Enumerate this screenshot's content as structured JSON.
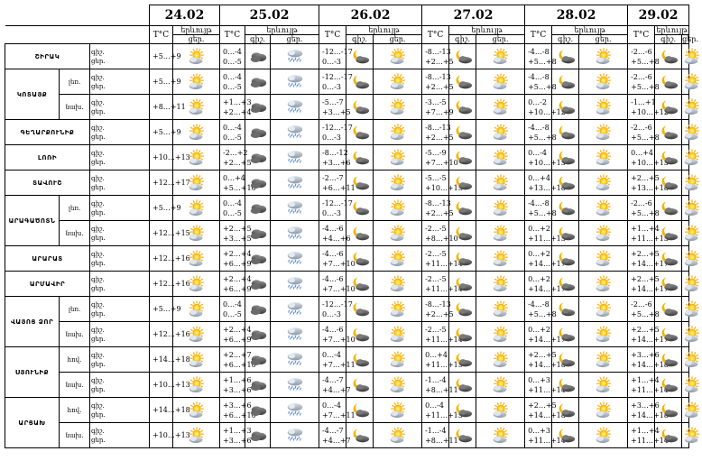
{
  "header": {
    "dates": [
      "24.02",
      "25.02",
      "26.02",
      "27.02",
      "28.02",
      "29.02"
    ],
    "temp_label": "T°C",
    "weather_label": "երևույթ",
    "night_short": "գիշ.",
    "day_short": "ցեր."
  },
  "rows": [
    {
      "region": "ՇԻՐԱԿ",
      "sub": "",
      "temps": [
        "+5…+9",
        "0…-4\n0…-5",
        "-12…-17\n0…-3",
        "-8…-13\n+2…+5",
        "-4…-8\n+5…+8",
        "-2…-6\n+5…+8"
      ],
      "icons": [
        "sun",
        "cloud",
        "rain",
        "moon",
        "sun",
        "moon",
        "sun",
        "moon",
        "sun",
        "moon",
        "sun"
      ]
    },
    {
      "region": "ԿՈՏԱՅՔ",
      "sub": "լեռ.",
      "temps": [
        "+5…+9",
        "0…-4\n0…-5",
        "-12…-17\n0…-3",
        "-8…-13\n+2…+5",
        "-4…-8\n+5…+8",
        "-2…-6\n+5…+8"
      ],
      "icons": [
        "sun",
        "cloud",
        "rain",
        "moon",
        "sun",
        "moon",
        "sun",
        "moon",
        "sun",
        "moon",
        "sun"
      ]
    },
    {
      "region": "",
      "sub": "նախ.",
      "temps": [
        "+8…+11",
        "+1…+3\n+2…+4",
        "-5…-7\n+3…+5",
        "-3…-5\n+7…+9",
        "0…-2\n+10…+12",
        "-1…+1\n+10…+12"
      ],
      "icons": [
        "sun",
        "cloud",
        "rain",
        "moon",
        "sun",
        "moon",
        "sun",
        "moon",
        "sun",
        "moon",
        "sun"
      ]
    },
    {
      "region": "ԳԵՂԱՐՔՈՒՆԻՔ",
      "sub": "",
      "temps": [
        "+5…+9",
        "0…-4\n0…-5",
        "-12…-17\n0…-3",
        "-8…-13\n+2…+5",
        "-4…-8\n+5…+8",
        "-2…-6\n+5…+8"
      ],
      "icons": [
        "sun",
        "cloud",
        "rain",
        "moon",
        "sun",
        "moon",
        "sun",
        "moon",
        "sun",
        "moon",
        "sun"
      ]
    },
    {
      "region": "ԼՈՌԻ",
      "sub": "",
      "temps": [
        "+10…+13",
        "-2…+2\n+2…+5",
        "-8…-12\n+3…+6",
        "-5…-9\n+7…+10",
        "0…-4\n+10…+13",
        "0…+4\n+10…+13"
      ],
      "icons": [
        "sun",
        "cloud",
        "rain",
        "moon",
        "sun",
        "moon",
        "sun",
        "moon",
        "sun",
        "moon",
        "sun"
      ]
    },
    {
      "region": "ՏԱՎՈՒՇ",
      "sub": "",
      "temps": [
        "+12…+17",
        "0…+4\n+5…+10",
        "-2…-7\n+6…+11",
        "-5…-5\n+10…+15",
        "0…+4\n+13…+18",
        "+2…+5\n+13…+18"
      ],
      "icons": [
        "sun",
        "cloud",
        "rain",
        "moon",
        "sun",
        "moon",
        "sun",
        "moon",
        "sun",
        "moon",
        "sun"
      ]
    },
    {
      "region": "ԱՐԱԳԱԾՈՏՆ",
      "sub": "լեռ.",
      "temps": [
        "+5…+9",
        "0…-4\n0…-5",
        "-12…-17\n0…-3",
        "-8…-13\n+2…+5",
        "-4…-8\n+5…+8",
        "-2…-6\n+5…+8"
      ],
      "icons": [
        "sun",
        "cloud",
        "rain",
        "moon",
        "sun",
        "moon",
        "sun",
        "moon",
        "sun",
        "moon",
        "sun"
      ]
    },
    {
      "region": "",
      "sub": "նախ.",
      "temps": [
        "+12…+15",
        "+2…+5\n+3…+5",
        "-4…-6\n+4…+6",
        "-2…-5\n+8…+10",
        "0…+2\n+11…+13",
        "+1…+4\n+11…+13"
      ],
      "icons": [
        "sun",
        "cloud",
        "rain",
        "moon",
        "sun",
        "moon",
        "sun",
        "moon",
        "sun",
        "moon",
        "sun"
      ]
    },
    {
      "region": "ԱՐԱՐԱՏ",
      "sub": "",
      "temps": [
        "+12…+16",
        "+2…+4\n+6…+9",
        "-4…-6\n+7…+10",
        "-2…-5\n+11…+14",
        "0…+2\n+14…+17",
        "+2…+5\n+14…+17"
      ],
      "icons": [
        "sun",
        "cloud",
        "rain",
        "moon",
        "sun",
        "moon",
        "sun",
        "moon",
        "sun",
        "moon",
        "sun"
      ]
    },
    {
      "region": "ԱՐՄԱՎԻՐ",
      "sub": "",
      "temps": [
        "+12…+16",
        "+2…+4\n+6…+9",
        "-4…-6\n+7…+10",
        "-2…-5\n+11…+14",
        "0…+2\n+14…+17",
        "+2…+5\n+14…+17"
      ],
      "icons": [
        "sun",
        "cloud",
        "rain",
        "moon",
        "sun",
        "moon",
        "sun",
        "moon",
        "sun",
        "moon",
        "sun"
      ]
    },
    {
      "region": "ՎԱՅՈՑ ՁՈՐ",
      "sub": "լեռ.",
      "temps": [
        "+5…+9",
        "0…-4\n0…-5",
        "-12…-17\n0…-3",
        "-8…-13\n+2…+5",
        "-4…-8\n+5…+8",
        "-2…-6\n+5…+8"
      ],
      "icons": [
        "sun",
        "cloud",
        "rain",
        "moon",
        "sun",
        "moon",
        "sun",
        "moon",
        "sun",
        "moon",
        "sun"
      ]
    },
    {
      "region": "",
      "sub": "նախ.",
      "temps": [
        "+12…+16",
        "+2…+4\n+6…+9",
        "-4…-6\n+7…+10",
        "-2…-5\n+11…+14",
        "0…+2\n+14…+17",
        "+2…+5\n+14…+17"
      ],
      "icons": [
        "sun",
        "cloud",
        "rain",
        "moon",
        "sun",
        "moon",
        "sun",
        "moon",
        "sun",
        "moon",
        "sun"
      ]
    },
    {
      "region": "ՍՅՈՒՆԻՔ",
      "sub": "հով.",
      "temps": [
        "+14…+18",
        "+2…+7\n+6…+10",
        "0…-4\n+7…+11",
        "0…+4\n+11…+15",
        "+2…+5\n+14…+18",
        "+3…+6\n+14…+18"
      ],
      "icons": [
        "sun",
        "cloud",
        "rain",
        "moon",
        "sun",
        "moon",
        "sun",
        "moon",
        "sun",
        "moon",
        "sun"
      ]
    },
    {
      "region": "",
      "sub": "նախ.",
      "temps": [
        "+10…+13",
        "+1…+6\n+3…+6",
        "-4…-7\n+4…+7",
        "-1…-4\n+8…+11",
        "0…+3\n+11…+14",
        "+1…+4\n+11…+14"
      ],
      "icons": [
        "sun",
        "cloud",
        "rain",
        "moon",
        "sun",
        "moon",
        "sun",
        "moon",
        "sun",
        "moon",
        "sun"
      ]
    },
    {
      "region": "ԱՐՑԱԽ",
      "sub": "հով.",
      "temps": [
        "+14…+18",
        "+3…+6\n+6…+10",
        "0…-4\n+7…+11",
        "0…-4\n+11…+15",
        "+2…+5\n+14…+18",
        "+3…+6\n+14…+18"
      ],
      "icons": [
        "sun",
        "cloud",
        "rain",
        "moon",
        "sun",
        "moon",
        "sun",
        "moon",
        "sun",
        "moon",
        "sun"
      ]
    },
    {
      "region": "",
      "sub": "նախ.",
      "temps": [
        "+10…+13",
        "+1…+3\n+3…+6",
        "-4…-7\n+4…+7",
        "-1…-4\n+8…+11",
        "0…+3\n+11…+14",
        "+1…+4\n+11…+14"
      ],
      "icons": [
        "sun",
        "cloud",
        "rain",
        "moon",
        "sun",
        "moon",
        "sun",
        "moon",
        "sun",
        "moon",
        "sun"
      ]
    }
  ]
}
